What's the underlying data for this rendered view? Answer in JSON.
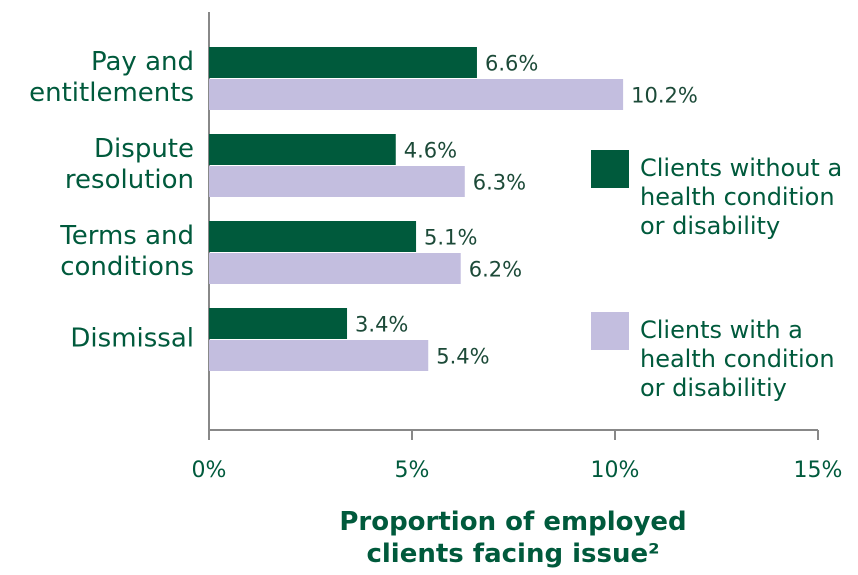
{
  "chart_data": {
    "type": "bar",
    "orientation": "horizontal",
    "categories": [
      "Pay and\nentitlements",
      "Dispute\nresolution",
      "Terms and\nconditions",
      "Dismissal"
    ],
    "series": [
      {
        "name": "Clients without a health condition or disability",
        "color": "#005a3c",
        "values": [
          6.6,
          4.6,
          5.1,
          3.4
        ],
        "value_labels": [
          "6.6%",
          "4.6%",
          "5.1%",
          "3.4%"
        ]
      },
      {
        "name": "Clients with a health condition or disabilitiy",
        "color": "#c3bedf",
        "values": [
          10.2,
          6.3,
          6.2,
          5.4
        ],
        "value_labels": [
          "10.2%",
          "6.3%",
          "6.2%",
          "5.4%"
        ]
      }
    ],
    "xlabel": "Proportion of employed clients facing issue²",
    "xlim": [
      0,
      15
    ],
    "xticks": [
      {
        "value": 0,
        "label": "0%"
      },
      {
        "value": 5,
        "label": "5%"
      },
      {
        "value": 10,
        "label": "10%"
      },
      {
        "value": 15,
        "label": "15%"
      }
    ],
    "legend": "right",
    "grid": false
  }
}
